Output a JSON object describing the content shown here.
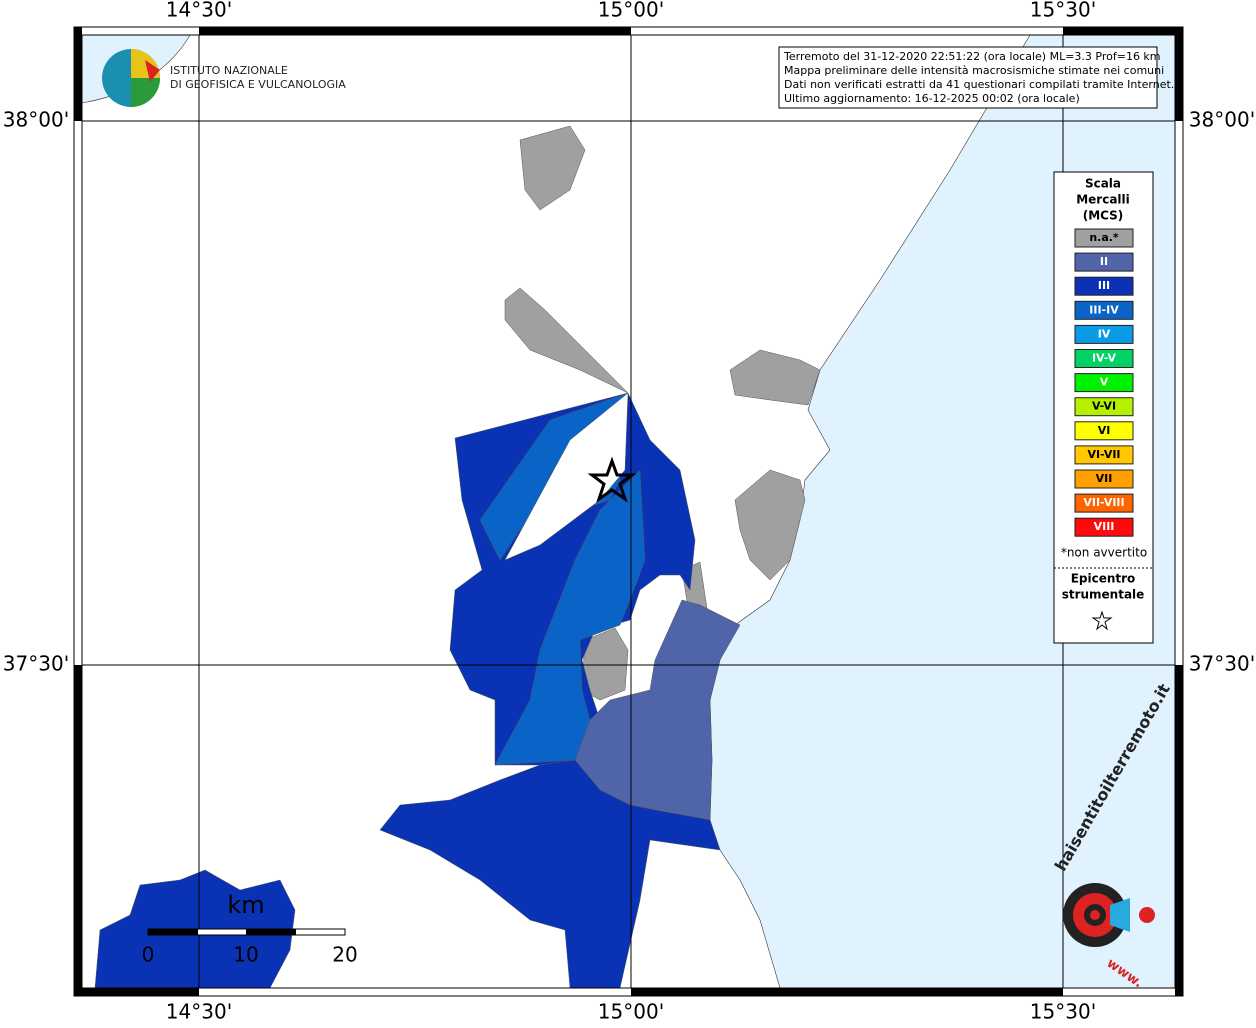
{
  "axes": {
    "top": [
      "14°30'",
      "15°00'",
      "15°30'"
    ],
    "bottom": [
      "14°30'",
      "15°00'",
      "15°30'"
    ],
    "left": [
      "38°00'",
      "37°30'"
    ],
    "right": [
      "38°00'",
      "37°30'"
    ]
  },
  "header": {
    "institute": [
      "ISTITUTO NAZIONALE",
      "DI GEOFISICA E VULCANOLOGIA"
    ]
  },
  "info_box": {
    "lines": [
      "Terremoto del 31-12-2020 22:51:22 (ora locale) ML=3.3 Prof=16 km",
      "Mappa preliminare delle intensità macrosismiche stimate nei comuni",
      "Dati non verificati estratti da 41 questionari compilati tramite Internet.",
      "Ultimo aggiornamento: 16-12-2025 00:02 (ora locale)"
    ]
  },
  "legend": {
    "title": [
      "Scala",
      "Mercalli",
      "(MCS)"
    ],
    "items": [
      {
        "label": "n.a.*",
        "color": "#a0a0a0"
      },
      {
        "label": "II",
        "color": "#5064aa"
      },
      {
        "label": "III",
        "color": "#0a32b4"
      },
      {
        "label": "III-IV",
        "color": "#0a64c8"
      },
      {
        "label": "IV",
        "color": "#0a9be6"
      },
      {
        "label": "IV-V",
        "color": "#00d264"
      },
      {
        "label": "V",
        "color": "#00f000"
      },
      {
        "label": "V-VI",
        "color": "#b4f000"
      },
      {
        "label": "VI",
        "color": "#ffff00"
      },
      {
        "label": "VI-VII",
        "color": "#ffc800"
      },
      {
        "label": "VII",
        "color": "#ffa000"
      },
      {
        "label": "VII-VIII",
        "color": "#ff6400"
      },
      {
        "label": "VIII",
        "color": "#ff0a0a"
      }
    ],
    "note": "*non avvertito",
    "epicenter": [
      "Epicentro",
      "strumentale"
    ]
  },
  "scale_bar": {
    "unit": "km",
    "ticks": [
      0,
      10,
      20
    ]
  },
  "watermark": {
    "site": "haisentitoilterremoto.it",
    "prefix": "www."
  }
}
